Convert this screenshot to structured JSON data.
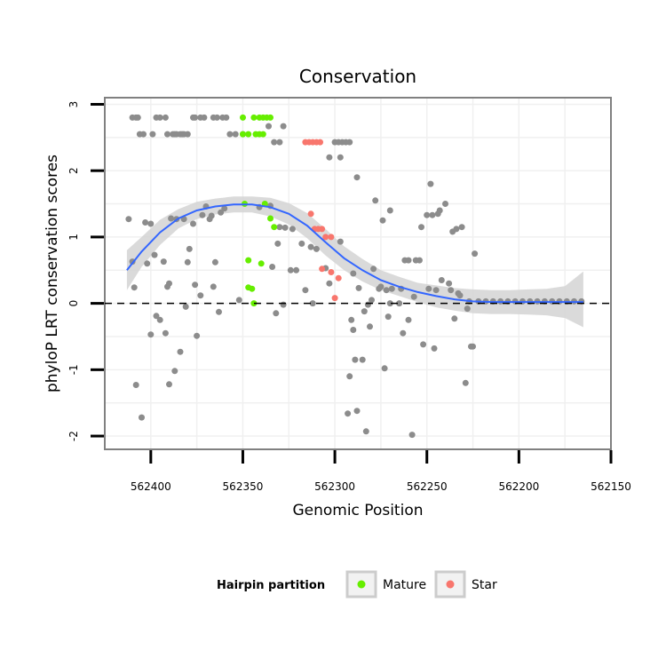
{
  "chart_data": {
    "type": "scatter",
    "title": "Conservation",
    "xlabel": "Genomic Position",
    "ylabel": "phyloP LRT conservation scores",
    "x_reversed": true,
    "xlim": [
      562150,
      562425
    ],
    "ylim": [
      -2.2,
      3.1
    ],
    "x_ticks": [
      562400,
      562350,
      562300,
      562250,
      562200,
      562150
    ],
    "x_tick_labels": [
      "562400",
      "562350",
      "562300",
      "562250",
      "562200",
      "562150"
    ],
    "y_ticks": [
      -2,
      -1,
      0,
      1,
      2,
      3
    ],
    "y_tick_labels": [
      "-2",
      "-1",
      "0",
      "1",
      "2",
      "3"
    ],
    "reference_line": {
      "y": 0,
      "style": "dashed",
      "color": "#000000"
    },
    "legend": {
      "title": "Hairpin partition",
      "placement": "bottom",
      "entries": [
        {
          "label": "Mature",
          "color": "#66ee00"
        },
        {
          "label": "Star",
          "color": "#f8766d"
        }
      ]
    },
    "colors": {
      "other": "#8c8c8c",
      "Mature": "#66ee00",
      "Star": "#f8766d",
      "smooth": "#3366ff",
      "band": "#d4d4d4"
    },
    "series": [
      {
        "name": "other",
        "points": [
          [
            562412,
            1.27
          ],
          [
            562410,
            0.63
          ],
          [
            562409,
            0.24
          ],
          [
            562408,
            -1.23
          ],
          [
            562405,
            -1.72
          ],
          [
            562403,
            1.22
          ],
          [
            562402,
            0.6
          ],
          [
            562400,
            -0.47
          ],
          [
            562400,
            1.2
          ],
          [
            562398,
            0.73
          ],
          [
            562397,
            -0.19
          ],
          [
            562395,
            -0.25
          ],
          [
            562393,
            0.63
          ],
          [
            562392,
            -0.45
          ],
          [
            562391,
            0.25
          ],
          [
            562390,
            -1.22
          ],
          [
            562390,
            0.3
          ],
          [
            562389,
            1.28
          ],
          [
            562386,
            1.27
          ],
          [
            562387,
            -1.02
          ],
          [
            562384,
            -0.73
          ],
          [
            562382,
            1.27
          ],
          [
            562381,
            -0.05
          ],
          [
            562380,
            0.62
          ],
          [
            562379,
            0.82
          ],
          [
            562377,
            1.2
          ],
          [
            562376,
            0.28
          ],
          [
            562375,
            -0.49
          ],
          [
            562373,
            0.12
          ],
          [
            562372,
            1.33
          ],
          [
            562370,
            1.46
          ],
          [
            562368,
            1.27
          ],
          [
            562367,
            1.32
          ],
          [
            562366,
            0.25
          ],
          [
            562365,
            0.62
          ],
          [
            562363,
            -0.13
          ],
          [
            562362,
            1.37
          ],
          [
            562360,
            1.43
          ],
          [
            562352,
            0.05
          ],
          [
            562341,
            1.45
          ],
          [
            562335,
            1.47
          ],
          [
            562334,
            0.55
          ],
          [
            562332,
            -0.15
          ],
          [
            562331,
            0.9
          ],
          [
            562330,
            1.15
          ],
          [
            562328,
            -0.02
          ],
          [
            562327,
            1.14
          ],
          [
            562324,
            0.5
          ],
          [
            562323,
            1.12
          ],
          [
            562321,
            0.5
          ],
          [
            562318,
            0.9
          ],
          [
            562316,
            0.2
          ],
          [
            562313,
            0.85
          ],
          [
            562312,
            0.0
          ],
          [
            562310,
            0.82
          ],
          [
            562305,
            0.53
          ],
          [
            562303,
            0.3
          ],
          [
            562303,
            2.2
          ],
          [
            562297,
            2.2
          ],
          [
            562297,
            0.93
          ],
          [
            562293,
            -1.66
          ],
          [
            562292,
            -1.1
          ],
          [
            562291,
            -0.25
          ],
          [
            562290,
            -0.4
          ],
          [
            562290,
            0.45
          ],
          [
            562289,
            -0.85
          ],
          [
            562288,
            -1.62
          ],
          [
            562288,
            1.9
          ],
          [
            562287,
            0.23
          ],
          [
            562285,
            -0.85
          ],
          [
            562284,
            -0.12
          ],
          [
            562283,
            -1.93
          ],
          [
            562282,
            -0.02
          ],
          [
            562281,
            -0.35
          ],
          [
            562280,
            0.05
          ],
          [
            562279,
            0.52
          ],
          [
            562278,
            1.55
          ],
          [
            562276,
            0.22
          ],
          [
            562275,
            0.25
          ],
          [
            562274,
            1.25
          ],
          [
            562273,
            -0.98
          ],
          [
            562272,
            0.2
          ],
          [
            562271,
            -0.2
          ],
          [
            562270,
            1.4
          ],
          [
            562270,
            0.0
          ],
          [
            562269,
            0.22
          ],
          [
            562265,
            0.0
          ],
          [
            562264,
            0.22
          ],
          [
            562263,
            -0.45
          ],
          [
            562262,
            0.65
          ],
          [
            562260,
            -0.25
          ],
          [
            562260,
            0.65
          ],
          [
            562258,
            -1.98
          ],
          [
            562257,
            0.1
          ],
          [
            562256,
            0.65
          ],
          [
            562254,
            0.65
          ],
          [
            562253,
            1.15
          ],
          [
            562252,
            -0.62
          ],
          [
            562250,
            1.33
          ],
          [
            562249,
            0.22
          ],
          [
            562248,
            1.8
          ],
          [
            562247,
            1.33
          ],
          [
            562246,
            -0.68
          ],
          [
            562245,
            0.2
          ],
          [
            562244,
            1.35
          ],
          [
            562243,
            1.4
          ],
          [
            562242,
            0.35
          ],
          [
            562240,
            1.5
          ],
          [
            562238,
            0.3
          ],
          [
            562237,
            0.2
          ],
          [
            562236,
            1.08
          ],
          [
            562235,
            -0.23
          ],
          [
            562234,
            1.12
          ],
          [
            562233,
            0.15
          ],
          [
            562232,
            0.12
          ],
          [
            562231,
            1.15
          ],
          [
            562229,
            -1.2
          ],
          [
            562228,
            -0.08
          ],
          [
            562227,
            0.03
          ],
          [
            562226,
            -0.65
          ],
          [
            562225,
            -0.65
          ],
          [
            562224,
            0.75
          ],
          [
            562222,
            0.03
          ],
          [
            562218,
            0.03
          ],
          [
            562214,
            0.03
          ],
          [
            562210,
            0.03
          ],
          [
            562206,
            0.03
          ],
          [
            562202,
            0.03
          ],
          [
            562198,
            0.03
          ],
          [
            562194,
            0.03
          ],
          [
            562190,
            0.03
          ],
          [
            562186,
            0.03
          ],
          [
            562182,
            0.03
          ],
          [
            562178,
            0.03
          ],
          [
            562174,
            0.03
          ],
          [
            562170,
            0.03
          ],
          [
            562166,
            0.03
          ],
          [
            562410,
            2.8
          ],
          [
            562408,
            2.8
          ],
          [
            562407,
            2.8
          ],
          [
            562406,
            2.55
          ],
          [
            562404,
            2.55
          ],
          [
            562399,
            2.55
          ],
          [
            562397,
            2.8
          ],
          [
            562395,
            2.8
          ],
          [
            562392,
            2.8
          ],
          [
            562391,
            2.55
          ],
          [
            562388,
            2.55
          ],
          [
            562387,
            2.55
          ],
          [
            562386,
            2.55
          ],
          [
            562384,
            2.55
          ],
          [
            562383,
            2.55
          ],
          [
            562382,
            2.55
          ],
          [
            562380,
            2.55
          ],
          [
            562377,
            2.8
          ],
          [
            562376,
            2.8
          ],
          [
            562373,
            2.8
          ],
          [
            562371,
            2.8
          ],
          [
            562366,
            2.8
          ],
          [
            562364,
            2.8
          ],
          [
            562361,
            2.8
          ],
          [
            562359,
            2.8
          ],
          [
            562357,
            2.55
          ],
          [
            562354,
            2.55
          ],
          [
            562350,
            2.55
          ],
          [
            562336,
            2.67
          ],
          [
            562333,
            2.43
          ],
          [
            562330,
            2.43
          ],
          [
            562328,
            2.67
          ],
          [
            562300,
            2.43
          ],
          [
            562298,
            2.43
          ],
          [
            562296,
            2.43
          ],
          [
            562294,
            2.43
          ],
          [
            562292,
            2.43
          ]
        ]
      },
      {
        "name": "Mature",
        "points": [
          [
            562350,
            2.8
          ],
          [
            562344,
            2.8
          ],
          [
            562341,
            2.8
          ],
          [
            562339,
            2.8
          ],
          [
            562337,
            2.8
          ],
          [
            562335,
            2.8
          ],
          [
            562350,
            2.55
          ],
          [
            562347,
            2.55
          ],
          [
            562343,
            2.55
          ],
          [
            562341,
            2.55
          ],
          [
            562339,
            2.55
          ],
          [
            562338,
            1.5
          ],
          [
            562335,
            1.28
          ],
          [
            562333,
            1.15
          ],
          [
            562347,
            0.65
          ],
          [
            562347,
            0.24
          ],
          [
            562345,
            0.22
          ],
          [
            562344,
            0.0
          ],
          [
            562340,
            0.6
          ],
          [
            562349,
            1.5
          ]
        ]
      },
      {
        "name": "Star",
        "points": [
          [
            562316,
            2.43
          ],
          [
            562314,
            2.43
          ],
          [
            562312,
            2.43
          ],
          [
            562310,
            2.43
          ],
          [
            562308,
            2.43
          ],
          [
            562313,
            1.35
          ],
          [
            562311,
            1.12
          ],
          [
            562309,
            1.12
          ],
          [
            562307,
            1.12
          ],
          [
            562305,
            1.0
          ],
          [
            562302,
            1.0
          ],
          [
            562307,
            0.52
          ],
          [
            562302,
            0.47
          ],
          [
            562298,
            0.38
          ],
          [
            562300,
            0.08
          ]
        ]
      }
    ],
    "smooth_curve": {
      "x": [
        562413,
        562405,
        562395,
        562385,
        562375,
        562365,
        562355,
        562345,
        562335,
        562325,
        562315,
        562305,
        562295,
        562285,
        562275,
        562265,
        562255,
        562245,
        562235,
        562225,
        562215,
        562205,
        562195,
        562185,
        562175,
        562165
      ],
      "y": [
        0.5,
        0.78,
        1.07,
        1.28,
        1.4,
        1.46,
        1.49,
        1.49,
        1.45,
        1.35,
        1.17,
        0.92,
        0.68,
        0.5,
        0.35,
        0.25,
        0.17,
        0.11,
        0.06,
        0.03,
        0.02,
        0.02,
        0.02,
        0.02,
        0.02,
        0.02
      ],
      "ci_lower": [
        0.2,
        0.55,
        0.88,
        1.13,
        1.27,
        1.34,
        1.37,
        1.37,
        1.31,
        1.19,
        0.98,
        0.72,
        0.5,
        0.33,
        0.2,
        0.11,
        0.02,
        -0.06,
        -0.11,
        -0.15,
        -0.16,
        -0.16,
        -0.17,
        -0.18,
        -0.22,
        -0.36
      ],
      "ci_upper": [
        0.8,
        1.0,
        1.26,
        1.42,
        1.53,
        1.58,
        1.61,
        1.61,
        1.59,
        1.51,
        1.36,
        1.12,
        0.86,
        0.67,
        0.5,
        0.4,
        0.31,
        0.27,
        0.23,
        0.21,
        0.2,
        0.2,
        0.21,
        0.22,
        0.26,
        0.48
      ]
    }
  }
}
